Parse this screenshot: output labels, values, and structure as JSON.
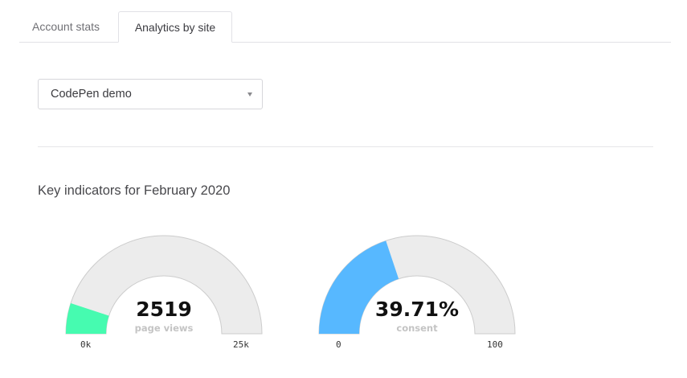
{
  "tabs": [
    {
      "label": "Account stats",
      "active": false
    },
    {
      "label": "Analytics by site",
      "active": true
    }
  ],
  "site_select": {
    "selected": "CodePen demo"
  },
  "section": {
    "title": "Key indicators for February 2020"
  },
  "gauges": [
    {
      "value_label": "2519",
      "caption": "page views",
      "min_label": "0k",
      "max_label": "25k",
      "value": 2519,
      "min": 0,
      "max": 25000,
      "color": "#46fbb0"
    },
    {
      "value_label": "39.71%",
      "caption": "consent",
      "min_label": "0",
      "max_label": "100",
      "value": 39.71,
      "min": 0,
      "max": 100,
      "color": "#57b8ff"
    }
  ],
  "colors": {
    "track": "#ececec",
    "track_border": "#cccccc"
  },
  "chart_data": [
    {
      "type": "gauge",
      "title": "page views",
      "value": 2519,
      "range": [
        0,
        25000
      ],
      "tick_labels": [
        "0k",
        "25k"
      ],
      "display": "2519",
      "color": "#46fbb0"
    },
    {
      "type": "gauge",
      "title": "consent",
      "value": 39.71,
      "range": [
        0,
        100
      ],
      "tick_labels": [
        "0",
        "100"
      ],
      "display": "39.71%",
      "color": "#57b8ff"
    }
  ]
}
